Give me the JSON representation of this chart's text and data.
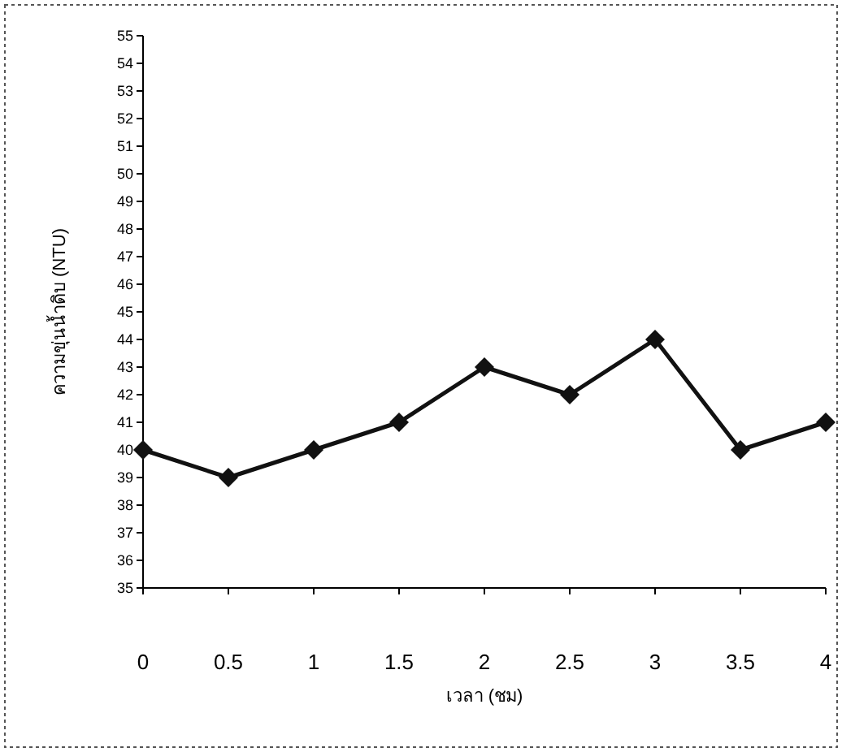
{
  "chart_data": {
    "type": "line",
    "xlabel": "เวลา (ชม)",
    "ylabel": "ความขุ่นน้ำดิบ (NTU)",
    "x": [
      0,
      0.5,
      1,
      1.5,
      2,
      2.5,
      3,
      3.5,
      4
    ],
    "series": [
      {
        "color": "#111111",
        "values": [
          40,
          39,
          40,
          41,
          43,
          42,
          44,
          40,
          41
        ]
      }
    ],
    "xlim": [
      0,
      4
    ],
    "xticks": [
      0,
      0.5,
      1,
      1.5,
      2,
      2.5,
      3,
      3.5,
      4
    ],
    "ylim": [
      35,
      55
    ],
    "yticks": [
      35,
      36,
      37,
      38,
      39,
      40,
      41,
      42,
      43,
      44,
      45,
      46,
      47,
      48,
      49,
      50,
      51,
      52,
      53,
      54,
      55
    ],
    "marker": "diamond",
    "line_style": "solid",
    "grid": false
  }
}
